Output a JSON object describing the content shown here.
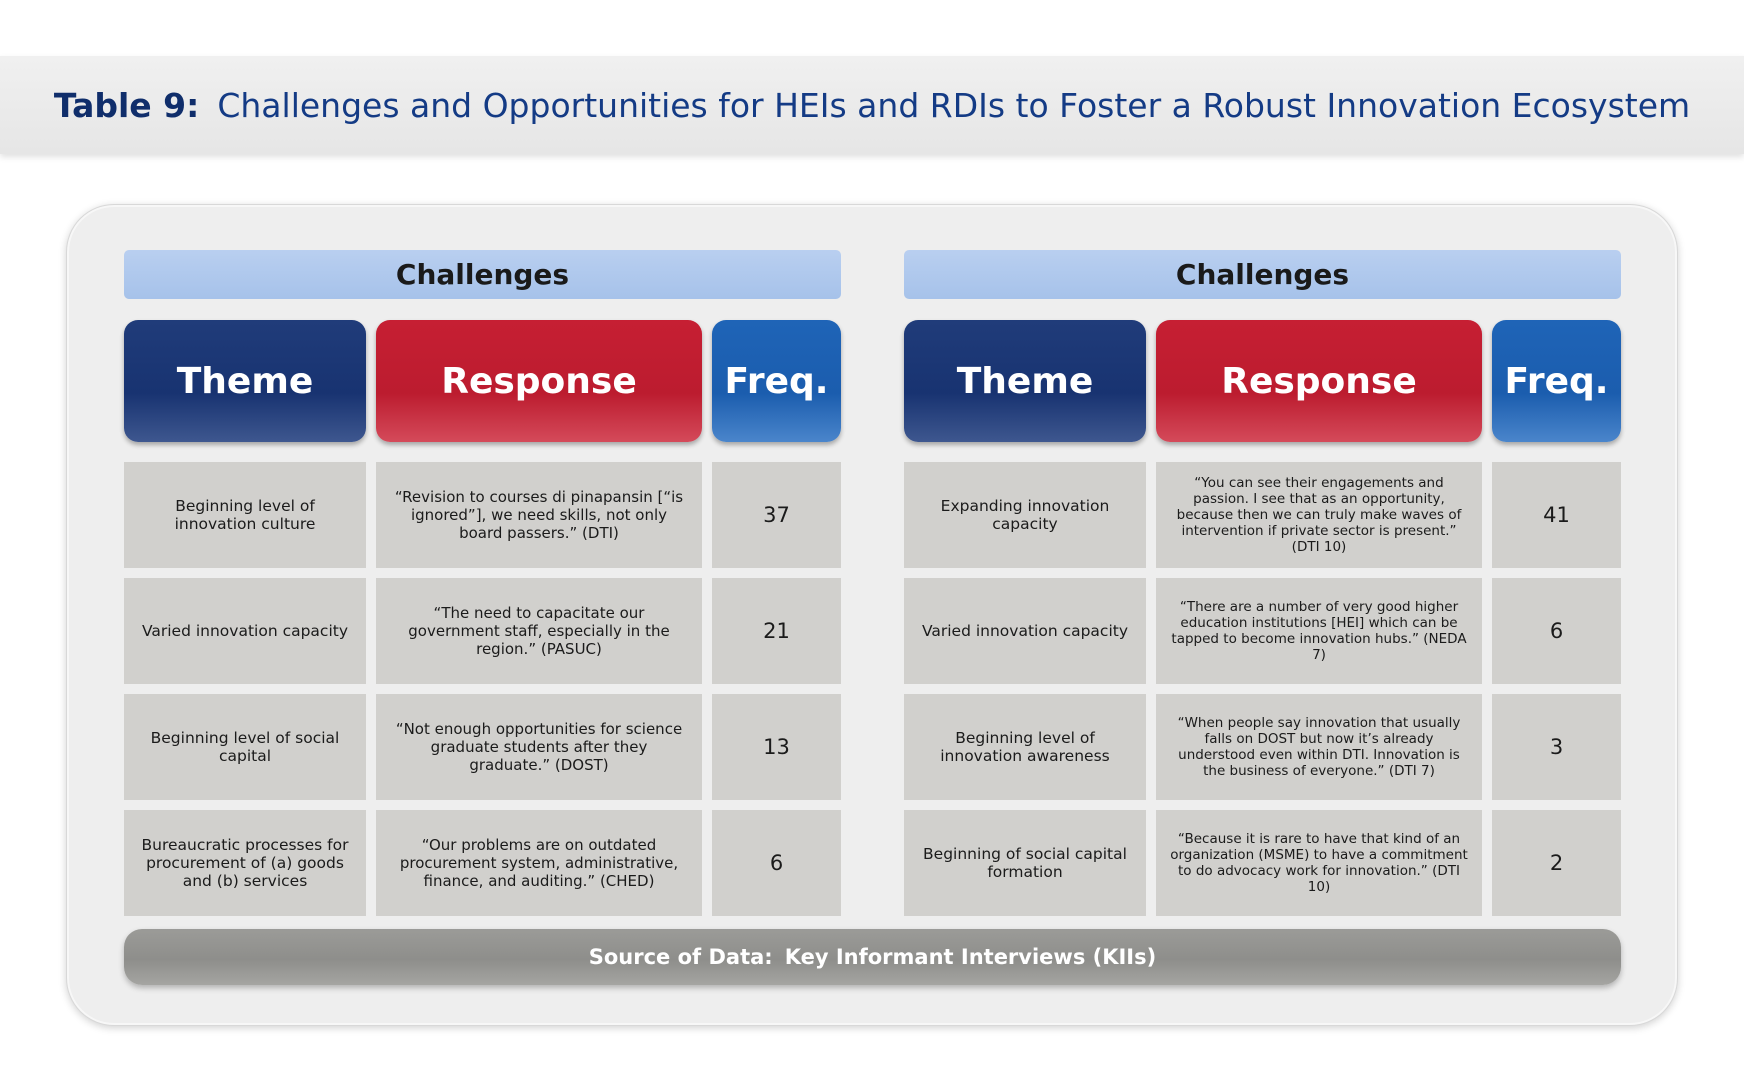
{
  "title": {
    "prefix": "Table 9:",
    "text": "Challenges and Opportunities for HEIs and RDIs to Foster a Robust Innovation Ecosystem"
  },
  "columns": {
    "theme": "Theme",
    "response": "Response",
    "freq": "Freq."
  },
  "left_table": {
    "header": "Challenges",
    "rows": [
      {
        "theme": "Beginning level of innovation culture",
        "response": "“Revision to courses di pinapansin [“is ignored”], we need skills, not only board passers.” (DTI)",
        "freq": "37"
      },
      {
        "theme": "Varied innovation capacity",
        "response": "“The need to capacitate our government staff, especially in the region.” (PASUC)",
        "freq": "21"
      },
      {
        "theme": "Beginning level of social capital",
        "response": "“Not enough opportunities for science graduate students after they graduate.” (DOST)",
        "freq": "13"
      },
      {
        "theme": "Bureaucratic processes for procurement of (a) goods and (b) services",
        "response": "“Our problems are on outdated procurement system, administrative, finance, and auditing.” (CHED)",
        "freq": "6"
      }
    ]
  },
  "right_table": {
    "header": "Challenges",
    "rows": [
      {
        "theme": "Expanding innovation capacity",
        "response": "“You can see their engagements and passion. I see that as an opportunity, because then we can truly make waves of intervention if private sector is present.” (DTI 10)",
        "freq": "41"
      },
      {
        "theme": "Varied innovation capacity",
        "response": "“There are a number of very good higher education institutions [HEI] which can be tapped to become innovation hubs.” (NEDA 7)",
        "freq": "6"
      },
      {
        "theme": "Beginning level of innovation awareness",
        "response": "“When people say innovation that usually falls on DOST but now it’s already understood even within DTI. Innovation is the business of everyone.” (DTI 7)",
        "freq": "3"
      },
      {
        "theme": "Beginning of social capital formation",
        "response": "“Because it is rare to have that kind of an organization (MSME) to have a commitment to do advocacy work for innovation.” (DTI 10)",
        "freq": "2"
      }
    ]
  },
  "source": {
    "label": "Source of Data:",
    "value": "Key Informant Interviews  (KIIs)"
  }
}
